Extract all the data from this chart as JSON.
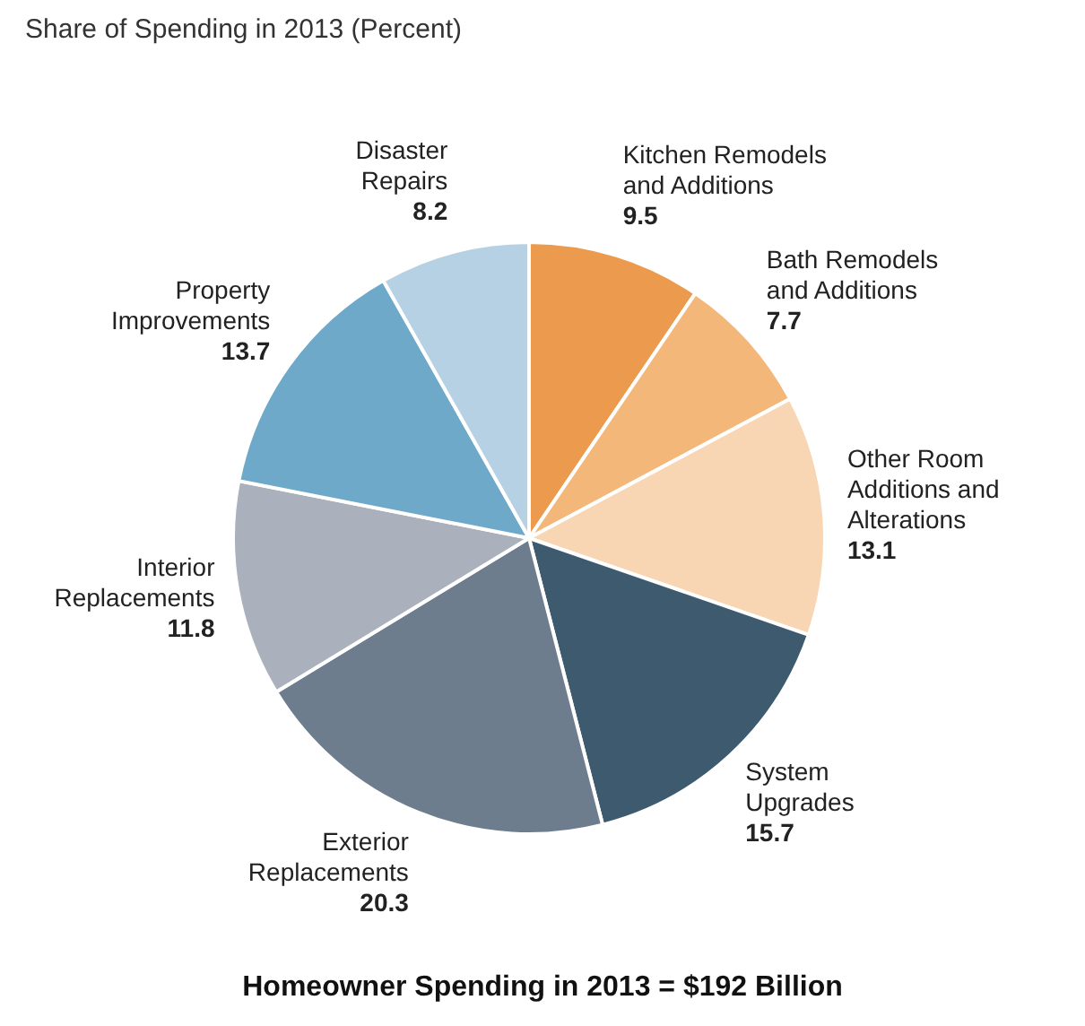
{
  "chart_data": {
    "type": "pie",
    "title": "Share of Spending in 2013 (Percent)",
    "annotations": [
      "Homeowner Spending in 2013 = $192 Billion"
    ],
    "categories": [
      "Kitchen Remodels\nand Additions",
      "Bath Remodels\nand Additions",
      "Other Room\nAdditions and\nAlterations",
      "System\nUpgrades",
      "Exterior\nReplacements",
      "Interior\nReplacements",
      "Property\nImprovements",
      "Disaster\nRepairs"
    ],
    "values": [
      9.5,
      7.7,
      13.1,
      15.7,
      20.3,
      11.8,
      13.7,
      8.2
    ],
    "colors": [
      "#eb9a4e",
      "#f3b77a",
      "#f8d5b3",
      "#3d5a6e",
      "#6d7d8e",
      "#aab1bc",
      "#6fa9c9",
      "#b6d1e3"
    ],
    "data_labels": true
  }
}
